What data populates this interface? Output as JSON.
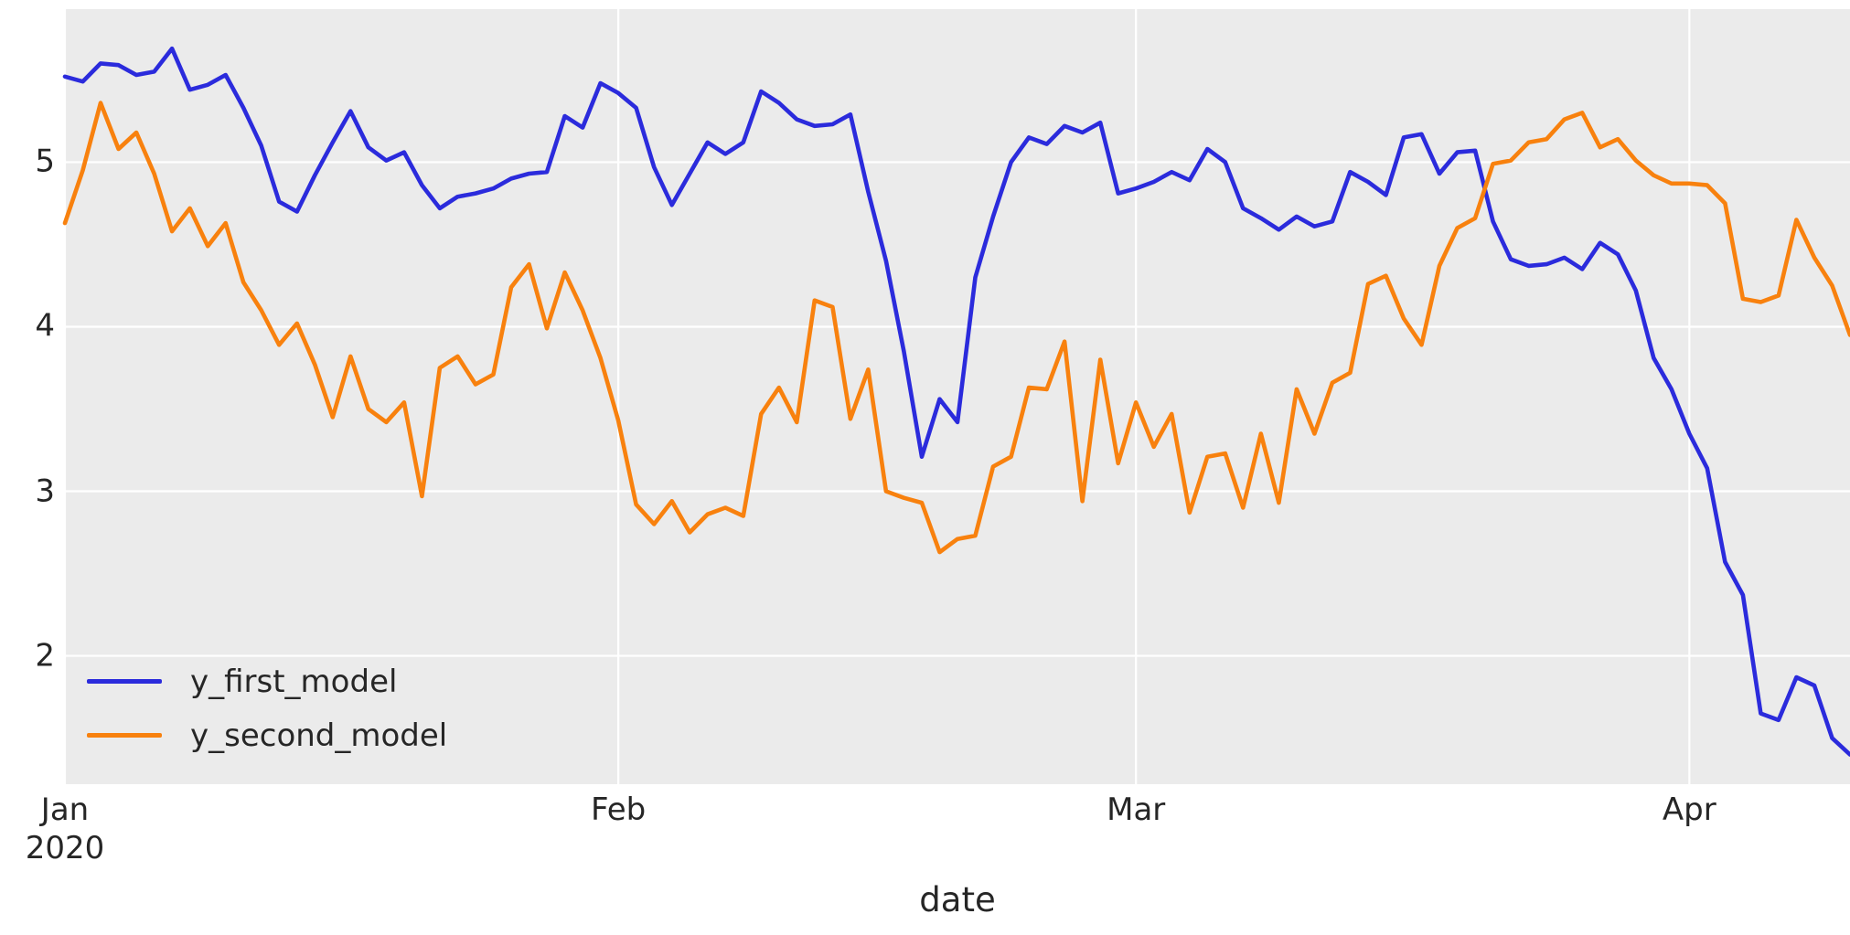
{
  "chart_data": {
    "type": "line",
    "title": "",
    "xlabel": "date",
    "ylabel": "",
    "grid": true,
    "legend_position": "lower left",
    "plot_bg_color": "#ebebeb",
    "gridline_color": "#ffffff",
    "text_color": "#262626",
    "x_start_date": "2020-01-01",
    "x_end_date": "2020-04-10",
    "x_unit": "days since 2020-01-01 (daily frequency)",
    "xlim": [
      0,
      100
    ],
    "ylim": [
      1.22,
      5.93
    ],
    "y_ticks": [
      2,
      3,
      4,
      5
    ],
    "y_tick_labels": [
      "2",
      "3",
      "4",
      "5"
    ],
    "x_ticks": [
      {
        "label": "Jan",
        "sub": "2020",
        "day": 0
      },
      {
        "label": "Feb",
        "sub": "",
        "day": 31
      },
      {
        "label": "Mar",
        "sub": "",
        "day": 60
      },
      {
        "label": "Apr",
        "sub": "",
        "day": 91
      }
    ],
    "series": [
      {
        "name": "y_first_model",
        "color": "#2b2bdc",
        "values": [
          5.52,
          5.49,
          5.6,
          5.59,
          5.53,
          5.55,
          5.69,
          5.44,
          5.47,
          5.53,
          5.33,
          5.1,
          4.76,
          4.7,
          4.92,
          5.12,
          5.31,
          5.09,
          5.01,
          5.06,
          4.86,
          4.72,
          4.79,
          4.81,
          4.84,
          4.9,
          4.93,
          4.94,
          5.28,
          5.21,
          5.48,
          5.42,
          5.33,
          4.97,
          4.74,
          4.93,
          5.12,
          5.05,
          5.12,
          5.43,
          5.36,
          5.26,
          5.22,
          5.23,
          5.29,
          4.82,
          4.4,
          3.85,
          3.21,
          3.56,
          3.42,
          4.3,
          4.67,
          5.0,
          5.15,
          5.11,
          5.22,
          5.18,
          5.24,
          4.81,
          4.84,
          4.88,
          4.94,
          4.89,
          5.08,
          5.0,
          4.72,
          4.66,
          4.59,
          4.67,
          4.61,
          4.64,
          4.94,
          4.88,
          4.8,
          5.15,
          5.17,
          4.93,
          5.06,
          5.07,
          4.64,
          4.41,
          4.37,
          4.38,
          4.42,
          4.35,
          4.51,
          4.44,
          4.22,
          3.81,
          3.62,
          3.35,
          3.14,
          2.57,
          2.37,
          1.65,
          1.61,
          1.87,
          1.82,
          1.5,
          1.4
        ]
      },
      {
        "name": "y_second_model",
        "color": "#f8810e",
        "values": [
          4.63,
          4.95,
          5.36,
          5.08,
          5.18,
          4.93,
          4.58,
          4.72,
          4.49,
          4.63,
          4.27,
          4.1,
          3.89,
          4.02,
          3.77,
          3.45,
          3.82,
          3.5,
          3.42,
          3.54,
          2.97,
          3.75,
          3.82,
          3.65,
          3.71,
          4.24,
          4.38,
          3.99,
          4.33,
          4.1,
          3.81,
          3.43,
          2.92,
          2.8,
          2.94,
          2.75,
          2.86,
          2.9,
          2.85,
          3.47,
          3.63,
          3.42,
          4.16,
          4.12,
          3.44,
          3.74,
          3.0,
          2.96,
          2.93,
          2.63,
          2.71,
          2.73,
          3.15,
          3.21,
          3.63,
          3.62,
          3.91,
          2.94,
          3.8,
          3.17,
          3.54,
          3.27,
          3.47,
          2.87,
          3.21,
          3.23,
          2.9,
          3.35,
          2.93,
          3.62,
          3.35,
          3.66,
          3.72,
          4.26,
          4.31,
          4.05,
          3.89,
          4.37,
          4.6,
          4.66,
          4.99,
          5.01,
          5.12,
          5.14,
          5.26,
          5.3,
          5.09,
          5.14,
          5.01,
          4.92,
          4.87,
          4.87,
          4.86,
          4.75,
          4.17,
          4.15,
          4.19,
          4.65,
          4.42,
          4.25,
          3.95
        ]
      }
    ]
  }
}
